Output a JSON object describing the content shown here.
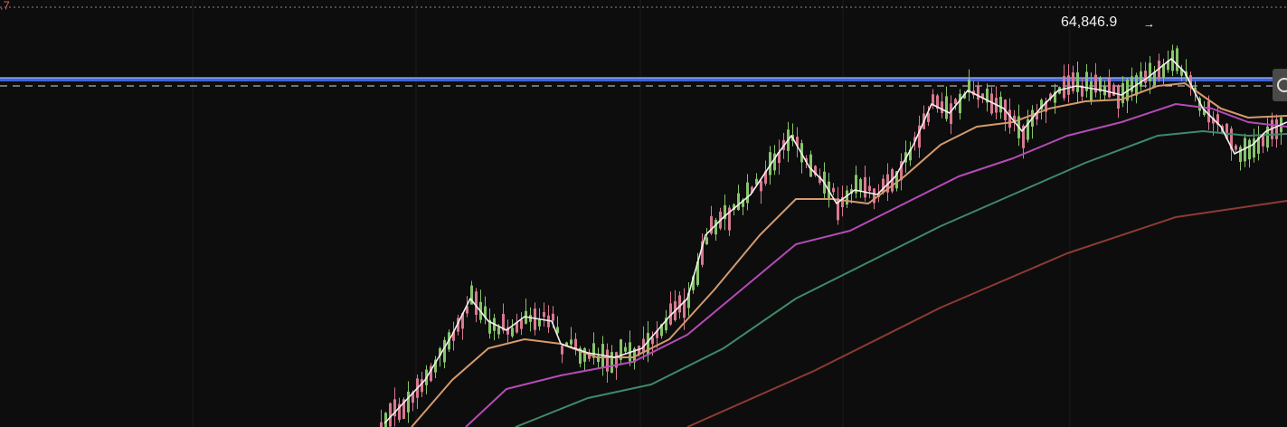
{
  "labels": {
    "corner_price": ".7",
    "high_price": "64,846.9",
    "high_arrow": "→"
  }
}
